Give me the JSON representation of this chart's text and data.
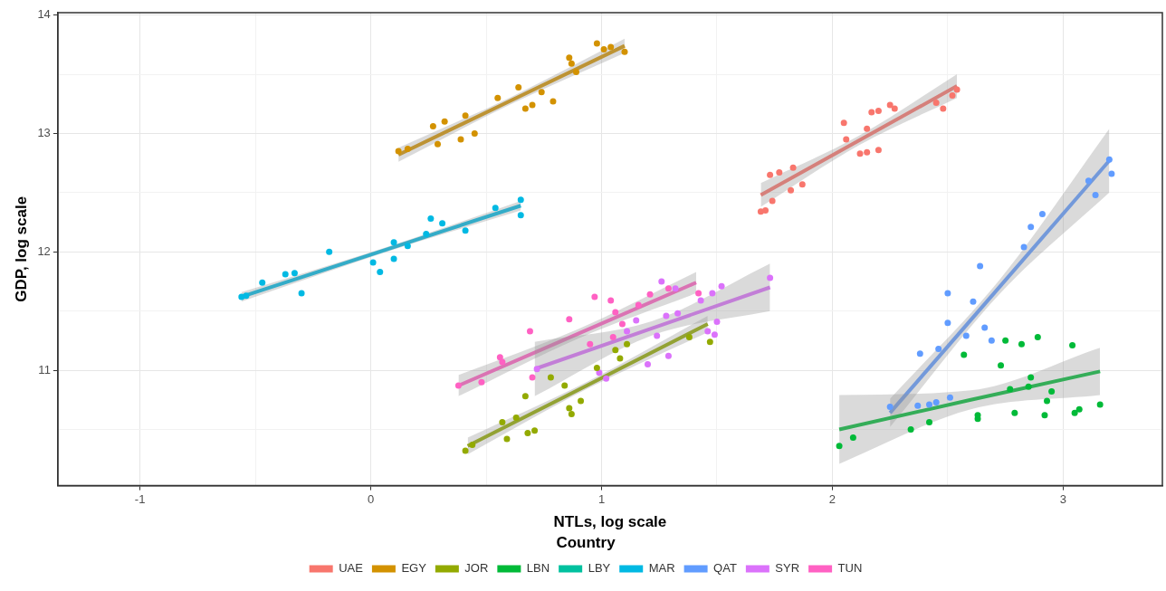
{
  "chart_data": {
    "type": "scatter",
    "xlabel": "NTLs, log scale",
    "ylabel": "GDP, log scale",
    "legend_title": "Country",
    "legend": "bottom",
    "grid": true,
    "xlim": [
      -1.356,
      3.43
    ],
    "ylim": [
      10.025,
      14.02
    ],
    "xticks": [
      -1,
      {
        "value": -0.5,
        "label": null
      },
      0,
      {
        "value": 0.5,
        "label": null
      },
      1,
      {
        "value": 1.5,
        "label": null
      },
      2,
      {
        "value": 2.5,
        "label": null
      },
      3
    ],
    "yticks": [
      {
        "value": 10.5,
        "label": null
      },
      11,
      {
        "value": 11.5,
        "label": null
      },
      12,
      {
        "value": 12.5,
        "label": null
      },
      13,
      {
        "value": 13.5,
        "label": null
      },
      14
    ],
    "series": [
      {
        "name": "UAE",
        "color": "#f8766d",
        "marker": "circle",
        "x": [
          1.69,
          1.71,
          1.73,
          1.74,
          1.77,
          1.82,
          1.83,
          1.87,
          2.05,
          2.06,
          2.12,
          2.15,
          2.15,
          2.17,
          2.2,
          2.2,
          2.25,
          2.27,
          2.45,
          2.48,
          2.52,
          2.54
        ],
        "values": [
          12.34,
          12.35,
          12.65,
          12.43,
          12.67,
          12.52,
          12.71,
          12.57,
          13.09,
          12.95,
          12.83,
          13.04,
          12.84,
          13.18,
          13.19,
          12.86,
          13.24,
          13.21,
          13.26,
          13.21,
          13.32,
          13.37
        ]
      },
      {
        "name": "EGY",
        "color": "#d39200",
        "marker": "circle",
        "x": [
          0.12,
          0.16,
          0.27,
          0.29,
          0.32,
          0.39,
          0.41,
          0.45,
          0.55,
          0.64,
          0.67,
          0.7,
          0.74,
          0.79,
          0.86,
          0.87,
          0.89,
          0.98,
          1.01,
          1.04,
          1.1
        ],
        "values": [
          12.85,
          12.87,
          13.06,
          12.91,
          13.1,
          12.95,
          13.15,
          13.0,
          13.3,
          13.39,
          13.21,
          13.24,
          13.35,
          13.27,
          13.64,
          13.59,
          13.52,
          13.76,
          13.71,
          13.73,
          13.69
        ]
      },
      {
        "name": "JOR",
        "color": "#93aa00",
        "marker": "circle",
        "x": [
          0.41,
          0.44,
          0.57,
          0.59,
          0.63,
          0.67,
          0.68,
          0.71,
          0.78,
          0.84,
          0.86,
          0.87,
          0.91,
          0.98,
          1.06,
          1.08,
          1.11,
          1.38,
          1.47
        ],
        "values": [
          10.32,
          10.37,
          10.56,
          10.42,
          10.6,
          10.78,
          10.47,
          10.49,
          10.94,
          10.87,
          10.68,
          10.63,
          10.74,
          11.02,
          11.17,
          11.1,
          11.22,
          11.28,
          11.24
        ]
      },
      {
        "name": "LBN",
        "color": "#00ba38",
        "marker": "circle",
        "x": [
          2.03,
          2.09,
          2.34,
          2.42,
          2.57,
          2.63,
          2.63,
          2.73,
          2.75,
          2.77,
          2.79,
          2.82,
          2.85,
          2.86,
          2.89,
          2.92,
          2.93,
          2.95,
          3.04,
          3.05,
          3.07,
          3.16
        ],
        "values": [
          10.36,
          10.43,
          10.5,
          10.56,
          11.13,
          10.62,
          10.59,
          11.04,
          11.25,
          10.84,
          10.64,
          11.22,
          10.86,
          10.94,
          11.28,
          10.62,
          10.74,
          10.82,
          11.21,
          10.64,
          10.67,
          10.71
        ]
      },
      {
        "name": "LBY",
        "color": "#00c19f"
      },
      {
        "name": "MAR",
        "color": "#00b9e3",
        "marker": "circle",
        "x": [
          -0.56,
          -0.54,
          -0.47,
          -0.37,
          -0.33,
          -0.3,
          -0.18,
          0.01,
          0.04,
          0.1,
          0.1,
          0.16,
          0.24,
          0.26,
          0.31,
          0.41,
          0.54,
          0.65,
          0.65
        ],
        "values": [
          11.62,
          11.63,
          11.74,
          11.81,
          11.82,
          11.65,
          12.0,
          11.91,
          11.83,
          12.08,
          11.94,
          12.05,
          12.15,
          12.28,
          12.24,
          12.18,
          12.37,
          12.44,
          12.31
        ]
      },
      {
        "name": "QAT",
        "color": "#619cff",
        "marker": "circle",
        "x": [
          2.25,
          2.37,
          2.38,
          2.42,
          2.45,
          2.46,
          2.5,
          2.5,
          2.51,
          2.58,
          2.61,
          2.64,
          2.66,
          2.69,
          2.83,
          2.86,
          2.91,
          3.11,
          3.14,
          3.2,
          3.21
        ],
        "values": [
          10.69,
          10.7,
          11.14,
          10.71,
          10.73,
          11.18,
          11.65,
          11.4,
          10.77,
          11.29,
          11.58,
          11.88,
          11.36,
          11.25,
          12.04,
          12.21,
          12.32,
          12.6,
          12.48,
          12.78,
          12.66
        ]
      },
      {
        "name": "SYR",
        "color": "#db72fb",
        "marker": "circle",
        "x": [
          0.72,
          0.99,
          1.02,
          1.11,
          1.15,
          1.2,
          1.24,
          1.26,
          1.28,
          1.29,
          1.32,
          1.33,
          1.43,
          1.46,
          1.48,
          1.49,
          1.5,
          1.52,
          1.73
        ],
        "values": [
          11.01,
          10.98,
          10.93,
          11.33,
          11.42,
          11.05,
          11.29,
          11.75,
          11.46,
          11.12,
          11.69,
          11.48,
          11.59,
          11.33,
          11.65,
          11.3,
          11.41,
          11.71,
          11.78
        ]
      },
      {
        "name": "TUN",
        "color": "#ff61c3",
        "marker": "circle",
        "x": [
          0.38,
          0.48,
          0.56,
          0.57,
          0.69,
          0.7,
          0.86,
          0.95,
          0.97,
          1.04,
          1.05,
          1.06,
          1.09,
          1.16,
          1.21,
          1.29,
          1.42
        ],
        "values": [
          10.87,
          10.9,
          11.11,
          11.07,
          11.33,
          10.94,
          11.43,
          11.22,
          11.62,
          11.59,
          11.28,
          11.49,
          11.39,
          11.55,
          11.64,
          11.69,
          11.65
        ]
      },
      {
        "type": "line",
        "color": "#f8766d",
        "x": [
          1.69,
          2.115,
          2.54
        ],
        "values": [
          12.48,
          12.94,
          13.4
        ],
        "lower": [
          12.38,
          12.9,
          13.3
        ],
        "upper": [
          12.58,
          12.98,
          13.5
        ]
      },
      {
        "type": "line",
        "color": "#d39200",
        "x": [
          0.12,
          0.61,
          1.1
        ],
        "values": [
          12.82,
          13.28,
          13.74
        ],
        "lower": [
          12.76,
          13.25,
          13.68
        ],
        "upper": [
          12.88,
          13.31,
          13.8
        ]
      },
      {
        "type": "line",
        "color": "#93aa00",
        "x": [
          0.42,
          0.94,
          1.46
        ],
        "values": [
          10.36,
          10.875,
          11.39
        ],
        "lower": [
          10.29,
          10.845,
          11.32
        ],
        "upper": [
          10.43,
          10.905,
          11.46
        ]
      },
      {
        "type": "line",
        "color": "#00ba38",
        "x": [
          2.03,
          2.6,
          3.16
        ],
        "values": [
          10.5,
          10.75,
          10.99
        ],
        "lower": [
          10.21,
          10.67,
          10.79
        ],
        "upper": [
          10.79,
          10.83,
          11.19
        ]
      },
      {
        "type": "line",
        "color": "#00b9e3",
        "x": [
          -0.56,
          0.045,
          0.65
        ],
        "values": [
          11.62,
          12.005,
          12.39
        ],
        "lower": [
          11.58,
          11.985,
          12.35
        ],
        "upper": [
          11.66,
          12.025,
          12.43
        ]
      },
      {
        "type": "line",
        "color": "#619cff",
        "x": [
          2.25,
          2.725,
          3.2
        ],
        "values": [
          10.64,
          11.705,
          12.77
        ],
        "lower": [
          10.52,
          11.645,
          12.5
        ],
        "upper": [
          10.76,
          11.765,
          13.04
        ]
      },
      {
        "type": "line",
        "color": "#db72fb",
        "x": [
          0.71,
          1.22,
          1.73
        ],
        "values": [
          11.01,
          11.355,
          11.7
        ],
        "lower": [
          10.78,
          11.295,
          11.5
        ],
        "upper": [
          11.24,
          11.415,
          11.9
        ]
      },
      {
        "type": "line",
        "color": "#ff61c3",
        "x": [
          0.38,
          0.895,
          1.41
        ],
        "values": [
          10.87,
          11.305,
          11.74
        ],
        "lower": [
          10.78,
          11.265,
          11.65
        ],
        "upper": [
          10.96,
          11.345,
          11.83
        ]
      }
    ]
  }
}
